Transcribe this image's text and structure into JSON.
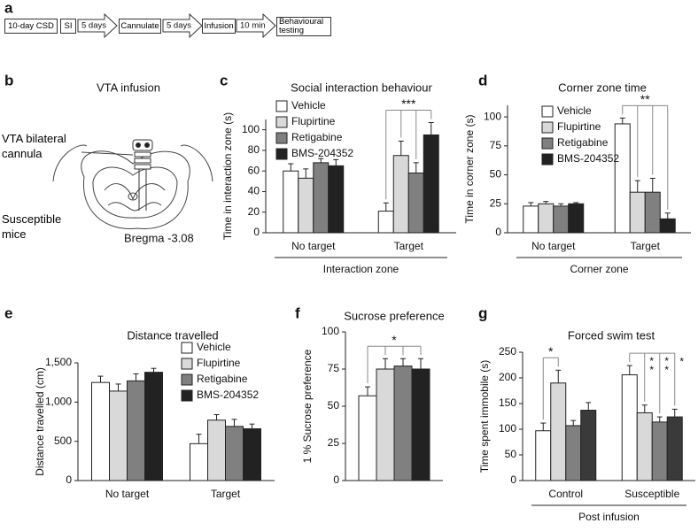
{
  "flow": {
    "panel": "a",
    "steps": [
      "10-day CSD",
      "SI",
      "Cannulate",
      "Infusion",
      "Behavioural testing"
    ],
    "intervals": [
      "5 days",
      "5 days",
      "10 min"
    ]
  },
  "diagram": {
    "panel": "b",
    "title": "VTA infusion",
    "labels": [
      "VTA bilateral cannula",
      "Susceptible mice",
      "Bregma -3.08"
    ]
  },
  "chart_data": [
    {
      "type": "bar",
      "panel": "c",
      "title": "Social interaction behaviour",
      "y_label": "Time in interaction zone (s)",
      "x_label": "Interaction zone",
      "categories": [
        "No target",
        "Target"
      ],
      "ylim": [
        0,
        110
      ],
      "yticks": [
        0,
        20,
        40,
        60,
        80,
        100
      ],
      "legend": true,
      "series": [
        {
          "name": "Vehicle",
          "color": "#ffffff",
          "values": [
            60,
            21
          ],
          "error": [
            7,
            8
          ]
        },
        {
          "name": "Flupirtine",
          "color": "#d9d9d9",
          "values": [
            53,
            75
          ],
          "error": [
            9,
            14
          ]
        },
        {
          "name": "Retigabine",
          "color": "#808080",
          "values": [
            68,
            58
          ],
          "error": [
            4,
            10
          ]
        },
        {
          "name": "BMS-204352",
          "color": "#222222",
          "values": [
            65,
            95
          ],
          "error": [
            6,
            12
          ]
        }
      ],
      "significance": [
        {
          "group": 1,
          "from": 0,
          "to": [
            1,
            2,
            3
          ],
          "label": "***"
        }
      ]
    },
    {
      "type": "bar",
      "panel": "d",
      "title": "Corner zone time",
      "y_label": "Time in corner zone (s)",
      "x_label": "Corner zone",
      "categories": [
        "No target",
        "Target"
      ],
      "ylim": [
        0,
        110
      ],
      "yticks": [
        0,
        25,
        50,
        75,
        100
      ],
      "legend": true,
      "series": [
        {
          "name": "Vehicle",
          "color": "#ffffff",
          "values": [
            23,
            94
          ],
          "error": [
            3,
            5
          ]
        },
        {
          "name": "Flupirtine",
          "color": "#d9d9d9",
          "values": [
            25,
            35
          ],
          "error": [
            2,
            10
          ]
        },
        {
          "name": "Retigabine",
          "color": "#808080",
          "values": [
            23,
            35
          ],
          "error": [
            2,
            12
          ]
        },
        {
          "name": "BMS-204352",
          "color": "#222222",
          "values": [
            25,
            12
          ],
          "error": [
            1,
            5
          ]
        }
      ],
      "significance": [
        {
          "group": 1,
          "from": 0,
          "to": [
            1,
            2,
            3
          ],
          "label": "**"
        }
      ]
    },
    {
      "type": "bar",
      "panel": "e",
      "title": "Distance travelled",
      "y_label": "Distance travelled (cm)",
      "categories": [
        "No target",
        "Target"
      ],
      "ylim": [
        0,
        1500
      ],
      "yticks": [
        0,
        500,
        {
          "value": 1000,
          "label": "1,000"
        },
        {
          "value": 1500,
          "label": "1,500"
        }
      ],
      "legend": true,
      "series": [
        {
          "name": "Vehicle",
          "color": "#ffffff",
          "values": [
            1250,
            470
          ],
          "error": [
            80,
            120
          ]
        },
        {
          "name": "Flupirtine",
          "color": "#d9d9d9",
          "values": [
            1140,
            770
          ],
          "error": [
            90,
            70
          ]
        },
        {
          "name": "Retigabine",
          "color": "#808080",
          "values": [
            1270,
            690
          ],
          "error": [
            90,
            90
          ]
        },
        {
          "name": "BMS-204352",
          "color": "#222222",
          "values": [
            1380,
            660
          ],
          "error": [
            50,
            60
          ]
        }
      ]
    },
    {
      "type": "bar",
      "panel": "f",
      "title": "Sucrose preference",
      "y_label": "1 % Sucrose preference",
      "categories": [
        null
      ],
      "ylim": [
        0,
        100
      ],
      "yticks": [
        0,
        25,
        50,
        75,
        100
      ],
      "legend": false,
      "series": [
        {
          "name": "Vehicle",
          "color": "#ffffff",
          "values": [
            57
          ],
          "error": [
            6
          ]
        },
        {
          "name": "Flupirtine",
          "color": "#d9d9d9",
          "values": [
            75
          ],
          "error": [
            7
          ]
        },
        {
          "name": "Retigabine",
          "color": "#808080",
          "values": [
            77
          ],
          "error": [
            5
          ]
        },
        {
          "name": "BMS-204352",
          "color": "#222222",
          "values": [
            75
          ],
          "error": [
            7
          ]
        }
      ],
      "significance": [
        {
          "group": 0,
          "from": 0,
          "to": [
            1,
            2,
            3
          ],
          "label": "*"
        }
      ]
    },
    {
      "type": "bar",
      "panel": "g",
      "title": "Forced swim test",
      "y_label": "Time spent immobile (s)",
      "x_label": "Post infusion",
      "categories": [
        "Control",
        "Susceptible"
      ],
      "ylim": [
        0,
        250
      ],
      "yticks": [
        0,
        50,
        100,
        150,
        200,
        250
      ],
      "legend": false,
      "series": [
        {
          "name": "Vehicle",
          "color": "#ffffff",
          "values": [
            97,
            206
          ],
          "error": [
            15,
            18
          ]
        },
        {
          "name": "Flupirtine",
          "color": "#d9d9d9",
          "values": [
            190,
            132
          ],
          "error": [
            25,
            15
          ]
        },
        {
          "name": "Retigabine",
          "color": "#808080",
          "values": [
            107,
            114
          ],
          "error": [
            10,
            10
          ]
        },
        {
          "name": "BMS-204352",
          "color": "#3a3a3a",
          "values": [
            137,
            124
          ],
          "error": [
            15,
            15
          ]
        }
      ],
      "significance": [
        {
          "group": 0,
          "from": 0,
          "to": [
            1
          ],
          "label": "*"
        },
        {
          "group": 1,
          "from": 0,
          "to": [
            1,
            2,
            3
          ],
          "labels": [
            "**",
            "**",
            "*"
          ]
        }
      ]
    }
  ]
}
